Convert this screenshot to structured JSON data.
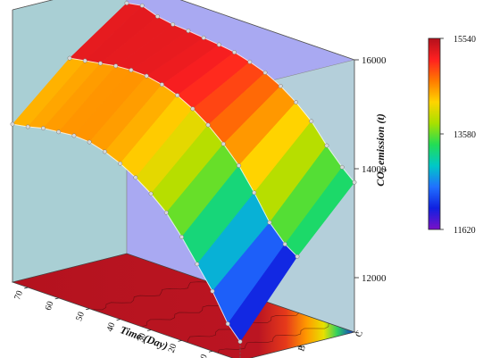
{
  "chart_data": {
    "type": "surface3d",
    "title": "",
    "zlabel": "CO₂ emission (t)",
    "z_ticks": [
      "12000",
      "14000",
      "16000"
    ],
    "zlim": [
      11000,
      16000
    ],
    "xlabel": "Time (Day)",
    "x_ticks": [
      "70",
      "60",
      "50",
      "40",
      "30",
      "20",
      "10"
    ],
    "xlim": [
      75,
      1
    ],
    "y_ticks": [
      "A",
      "B",
      "C"
    ],
    "colorbar": {
      "ticks": [
        "15540",
        "13580",
        "11620"
      ],
      "min": 11620,
      "max": 15540,
      "colors": [
        "#b4101c",
        "#ff2020",
        "#ff7a00",
        "#ffd400",
        "#a8e000",
        "#22dd55",
        "#00c8c8",
        "#2070ff",
        "#1020e0",
        "#7a10c8"
      ]
    },
    "panel_colors": {
      "back_left": "#a9cfd4",
      "back_middle": "#a9a9f2",
      "back_right": "#b6d6d6"
    },
    "series": [
      {
        "name": "A",
        "x": [
          75,
          70,
          65,
          60,
          55,
          50,
          45,
          40,
          35,
          30,
          25,
          20,
          15,
          10,
          5,
          1
        ],
        "values": [
          13900,
          13950,
          14020,
          14050,
          14080,
          14060,
          13980,
          13860,
          13700,
          13500,
          13250,
          12900,
          12500,
          12100,
          11600,
          11350
        ]
      },
      {
        "name": "B",
        "x": [
          75,
          70,
          65,
          60,
          55,
          50,
          45,
          40,
          35,
          30,
          25,
          20,
          15,
          10,
          5,
          1
        ],
        "values": [
          14850,
          14900,
          14950,
          15000,
          15020,
          15010,
          14950,
          14850,
          14700,
          14500,
          14250,
          13950,
          13550,
          13100,
          12800,
          12650
        ]
      },
      {
        "name": "C",
        "x": [
          75,
          70,
          65,
          60,
          55,
          50,
          45,
          40,
          35,
          30,
          25,
          20,
          15,
          10,
          5,
          1
        ],
        "values": [
          15600,
          15650,
          15550,
          15500,
          15480,
          15450,
          15420,
          15380,
          15300,
          15200,
          15050,
          14850,
          14600,
          14250,
          13950,
          13750
        ]
      }
    ]
  }
}
